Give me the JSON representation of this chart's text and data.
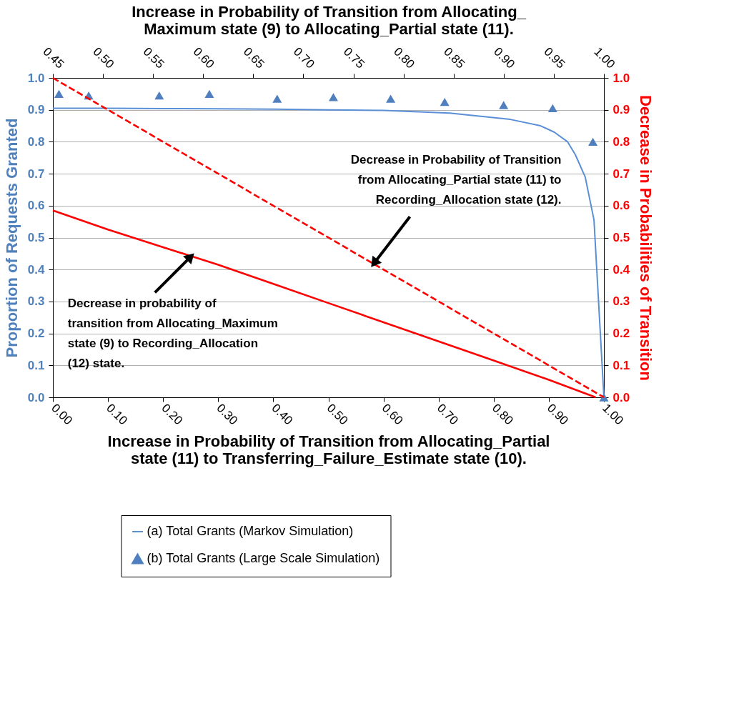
{
  "chart_data": {
    "type": "line",
    "xlabel": "Increase in Probability of Transition from Allocating_Partial state (11) to Transferring_Failure_Estimate  state (10).",
    "x2label": "Increase in Probability of Transition from Allocating_ Maximum state (9) to Allocating_Partial state (11).",
    "ylabel": "Proportion of Requests Granted",
    "y2label": "Decrease in Probabilities of Transition",
    "xlim": [
      0,
      1
    ],
    "xticks": [
      {
        "value": 0,
        "label": "0.00"
      },
      {
        "value": 0.1,
        "label": "0.10"
      },
      {
        "value": 0.2,
        "label": "0.20"
      },
      {
        "value": 0.3,
        "label": "0.30"
      },
      {
        "value": 0.4,
        "label": "0.40"
      },
      {
        "value": 0.5,
        "label": "0.50"
      },
      {
        "value": 0.6,
        "label": "0.60"
      },
      {
        "value": 0.7,
        "label": "0.70"
      },
      {
        "value": 0.8,
        "label": "0.80"
      },
      {
        "value": 0.9,
        "label": "0.90"
      },
      {
        "value": 1,
        "label": "1.00"
      }
    ],
    "x2lim": [
      0.45,
      1
    ],
    "x2ticks": [
      0.45,
      {
        "value": 0.5,
        "label": "0.50"
      },
      0.55,
      {
        "value": 0.6,
        "label": "0.60"
      },
      0.65,
      {
        "value": 0.7,
        "label": "0.70"
      },
      0.75,
      {
        "value": 0.8,
        "label": "0.80"
      },
      0.85,
      {
        "value": 0.9,
        "label": "0.90"
      },
      0.95,
      {
        "value": 1,
        "label": "1.00"
      }
    ],
    "ylim": [
      0,
      1
    ],
    "yticks": [
      {
        "value": 0,
        "label": "0.0"
      },
      0.1,
      0.2,
      0.3,
      0.4,
      0.5,
      0.6,
      0.7,
      0.8,
      0.9,
      {
        "value": 1,
        "label": "1.0"
      }
    ],
    "y2lim": [
      0,
      1
    ],
    "y2ticks": [
      {
        "value": 0,
        "label": "0.0"
      },
      0.1,
      0.2,
      0.3,
      0.4,
      0.5,
      0.6,
      0.7,
      0.8,
      0.9,
      {
        "value": 1,
        "label": "1.0"
      }
    ],
    "grid": "y",
    "legend": "bottom",
    "series": [
      {
        "name": "(a) Total Grants (Markov Simulation)",
        "color": "#5a8fd6",
        "x": [
          0,
          0.1,
          0.2,
          0.3,
          0.4,
          0.5,
          0.6,
          0.72,
          0.83,
          0.885,
          0.91,
          0.934,
          0.948,
          0.966,
          0.982,
          1
        ],
        "values": [
          0.905,
          0.905,
          0.904,
          0.903,
          0.902,
          0.9,
          0.898,
          0.89,
          0.87,
          0.85,
          0.83,
          0.8,
          0.76,
          0.69,
          0.555,
          0
        ]
      },
      {
        "name": "(b) Total Grants (Large Scale Simulation)",
        "type": "scatter",
        "marker": "triangle",
        "color": "#4f7fbf",
        "x": [
          0.011,
          0.065,
          0.193,
          0.284,
          0.407,
          0.509,
          0.613,
          0.711,
          0.818,
          0.907,
          0.98,
          1
        ],
        "values": [
          0.95,
          0.945,
          0.945,
          0.95,
          0.935,
          0.94,
          0.935,
          0.925,
          0.915,
          0.905,
          0.8,
          0
        ]
      },
      {
        "axis": "y2",
        "line_style": "dashed",
        "color": "#ff0000",
        "x": [
          0,
          1
        ],
        "values": [
          1,
          0
        ]
      },
      {
        "axis": "y2",
        "line_style": "solid",
        "color": "#ff0000",
        "x": [
          0,
          0.1,
          0.2,
          0.3,
          0.4,
          0.5,
          0.6,
          0.7,
          0.8,
          0.9,
          0.985
        ],
        "values": [
          0.585,
          0.525,
          0.47,
          0.415,
          0.355,
          0.295,
          0.235,
          0.175,
          0.115,
          0.055,
          0
        ]
      }
    ],
    "annotations": [
      {
        "text": "Decrease in Probability of Transition from Allocating_Partial state (11) to Recording_Allocation state (12).",
        "x": 0.583,
        "y": 0.42
      },
      {
        "text": "Decrease in probability of transition from Allocating_Maximum state (9) to Recording_Allocation (12) state.",
        "x": 0.25,
        "y": 0.44
      }
    ]
  }
}
